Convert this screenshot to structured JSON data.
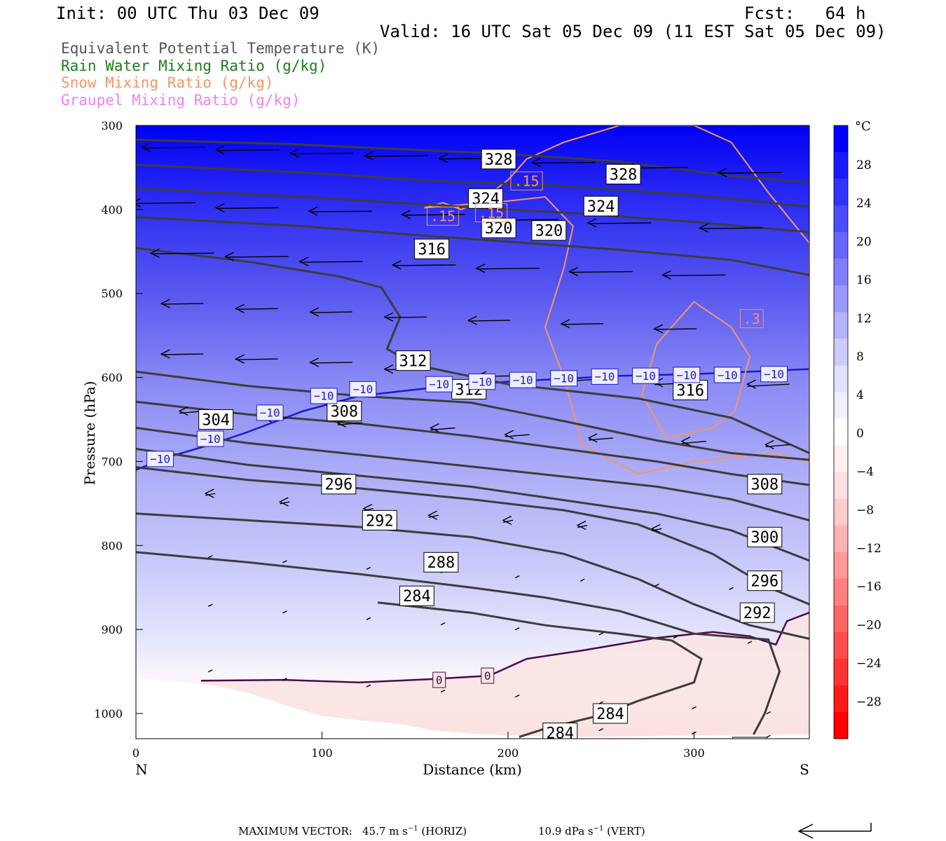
{
  "header": {
    "init": "Init: 00 UTC Thu 03 Dec 09",
    "fcst": "Fcst:   64 h",
    "valid": "Valid: 16 UTC Sat 05 Dec 09 (11 EST Sat 05 Dec 09)"
  },
  "legend": [
    {
      "text": "Equivalent Potential Temperature (K)",
      "color": "#555555"
    },
    {
      "text": "Rain Water Mixing Ratio (g/kg)",
      "color": "#1a7f1a"
    },
    {
      "text": "Snow Mixing Ratio (g/kg)",
      "color": "#f4956a"
    },
    {
      "text": "Graupel Mixing Ratio (g/kg)",
      "color": "#ee82ee"
    }
  ],
  "colorbar": {
    "unit": "°C",
    "labels": [
      "28",
      "24",
      "20",
      "16",
      "12",
      "8",
      "4",
      "0",
      "−4",
      "−8",
      "−12",
      "−16",
      "−20",
      "−24",
      "−28"
    ],
    "colors": [
      "#0000ff",
      "#1a1aff",
      "#3333ff",
      "#4d4dff",
      "#6666ff",
      "#8080ff",
      "#9999ff",
      "#b3b3ff",
      "#ccccff",
      "#e0e0ff",
      "#f0f0ff",
      "#ffffff",
      "#fff0f0",
      "#ffe0e0",
      "#ffcccc",
      "#ffb3b3",
      "#ff9999",
      "#ff8080",
      "#ff6666",
      "#ff4d4d",
      "#ff3333",
      "#ff1a1a",
      "#ff0000"
    ]
  },
  "chart_data": {
    "type": "cross-section",
    "xlabel": "Distance (km)",
    "ylabel": "Pressure (hPa)",
    "x_ticks": [
      "0",
      "100",
      "200",
      "300"
    ],
    "y_ticks": [
      "300",
      "400",
      "500",
      "600",
      "700",
      "800",
      "900",
      "1000"
    ],
    "xlim": [
      0,
      362
    ],
    "ylim": [
      300,
      1030
    ],
    "left_end_label": "N",
    "right_end_label": "S",
    "theta_e": {
      "name": "Equivalent Potential Temperature (K)",
      "lines": [
        {
          "label": "328",
          "points": [
            [
              0,
              317
            ],
            [
              80,
              322
            ],
            [
              140,
              328
            ],
            [
              200,
              334
            ],
            [
              260,
              343
            ],
            [
              320,
              360
            ],
            [
              362,
              368
            ]
          ]
        },
        {
          "label": "324",
          "points": [
            [
              0,
              347
            ],
            [
              90,
              356
            ],
            [
              160,
              366
            ],
            [
              230,
              372
            ],
            [
              300,
              383
            ],
            [
              362,
              397
            ]
          ]
        },
        {
          "label": "320",
          "points": [
            [
              0,
              375
            ],
            [
              90,
              385
            ],
            [
              170,
              396
            ],
            [
              240,
              405
            ],
            [
              300,
              415
            ],
            [
              362,
              427
            ]
          ]
        },
        {
          "label": "316",
          "points": [
            [
              0,
              409
            ],
            [
              90,
              420
            ],
            [
              160,
              432
            ],
            [
              210,
              440
            ],
            [
              260,
              448
            ],
            [
              320,
              460
            ],
            [
              362,
              478
            ]
          ]
        },
        {
          "label": "316",
          "points": [
            [
              0,
              446
            ],
            [
              60,
              462
            ],
            [
              110,
              480
            ],
            [
              132,
              493
            ],
            [
              142,
              528
            ],
            [
              135,
              566
            ],
            [
              150,
              585
            ],
            [
              200,
              608
            ],
            [
              270,
              625
            ],
            [
              320,
              648
            ],
            [
              362,
              690
            ]
          ]
        },
        {
          "label": "312",
          "points": [
            [
              0,
              593
            ],
            [
              60,
              610
            ],
            [
              120,
              622
            ],
            [
              180,
              630
            ],
            [
              230,
              652
            ],
            [
              280,
              675
            ],
            [
              320,
              690
            ],
            [
              362,
              698
            ]
          ]
        },
        {
          "label": "308",
          "points": [
            [
              0,
              629
            ],
            [
              60,
              644
            ],
            [
              120,
              655
            ],
            [
              180,
              670
            ],
            [
              230,
              685
            ],
            [
              280,
              700
            ],
            [
              320,
              715
            ],
            [
              362,
              728
            ]
          ]
        },
        {
          "label": "304",
          "points": [
            [
              0,
              660
            ],
            [
              60,
              678
            ],
            [
              120,
              692
            ],
            [
              180,
              706
            ],
            [
              230,
              718
            ],
            [
              280,
              730
            ],
            [
              320,
              745
            ],
            [
              362,
              770
            ]
          ]
        },
        {
          "label": "300",
          "points": [
            [
              0,
              685
            ],
            [
              60,
              704
            ],
            [
              120,
              717
            ],
            [
              180,
              730
            ],
            [
              230,
              746
            ],
            [
              280,
              762
            ],
            [
              320,
              782
            ],
            [
              362,
              818
            ]
          ]
        },
        {
          "label": "296",
          "points": [
            [
              0,
              707
            ],
            [
              60,
              722
            ],
            [
              120,
              732
            ],
            [
              180,
              745
            ],
            [
              230,
              758
            ],
            [
              270,
              775
            ],
            [
              310,
              810
            ],
            [
              340,
              850
            ],
            [
              362,
              870
            ]
          ]
        },
        {
          "label": "292",
          "points": [
            [
              0,
              762
            ],
            [
              60,
              770
            ],
            [
              120,
              778
            ],
            [
              180,
              790
            ],
            [
              230,
              810
            ],
            [
              270,
              840
            ],
            [
              300,
              870
            ],
            [
              330,
              895
            ],
            [
              362,
              911
            ]
          ]
        },
        {
          "label": "288",
          "points": [
            [
              0,
              808
            ],
            [
              60,
              820
            ],
            [
              120,
              834
            ],
            [
              180,
              850
            ],
            [
              220,
              862
            ],
            [
              260,
              878
            ],
            [
              300,
              905
            ],
            [
              340,
              912
            ],
            [
              346,
              950
            ],
            [
              338,
              1000
            ],
            [
              332,
              1025
            ]
          ]
        },
        {
          "label": "284",
          "points": [
            [
              130,
              868
            ],
            [
              180,
              880
            ],
            [
              220,
              895
            ],
            [
              260,
              905
            ],
            [
              288,
              913
            ],
            [
              304,
              935
            ],
            [
              300,
              963
            ],
            [
              270,
              985
            ],
            [
              250,
              1002
            ],
            [
              220,
              1018
            ],
            [
              206,
              1028
            ]
          ]
        }
      ]
    },
    "temperature_isotherms": [
      {
        "label": "−10",
        "points": [
          [
            0,
            710
          ],
          [
            20,
            693
          ],
          [
            40,
            680
          ],
          [
            60,
            665
          ],
          [
            90,
            640
          ],
          [
            120,
            622
          ],
          [
            160,
            612
          ],
          [
            200,
            605
          ],
          [
            260,
            598
          ],
          [
            300,
            596
          ],
          [
            362,
            590
          ]
        ]
      },
      {
        "label": "0",
        "points": [
          [
            35,
            961
          ],
          [
            80,
            960
          ],
          [
            120,
            963
          ],
          [
            160,
            959
          ],
          [
            190,
            955
          ],
          [
            210,
            935
          ],
          [
            240,
            925
          ],
          [
            280,
            910
          ],
          [
            310,
            903
          ],
          [
            330,
            908
          ],
          [
            344,
            918
          ],
          [
            350,
            890
          ],
          [
            362,
            880
          ]
        ]
      }
    ],
    "snow_mixing_ratio": [
      {
        "label": ".15",
        "points": [
          [
            155,
            398
          ],
          [
            165,
            392
          ],
          [
            175,
            400
          ],
          [
            185,
            390
          ],
          [
            200,
            365
          ],
          [
            210,
            340
          ],
          [
            230,
            320
          ],
          [
            260,
            300
          ],
          [
            300,
            300
          ],
          [
            320,
            320
          ],
          [
            340,
            380
          ],
          [
            362,
            440
          ],
          [
            362,
            700
          ],
          [
            340,
            690
          ],
          [
            300,
            700
          ],
          [
            270,
            715
          ],
          [
            240,
            680
          ],
          [
            230,
            600
          ],
          [
            220,
            540
          ],
          [
            230,
            470
          ],
          [
            235,
            420
          ],
          [
            220,
            385
          ],
          [
            200,
            390
          ]
        ]
      },
      {
        "label": ".3",
        "points": [
          [
            280,
            560
          ],
          [
            300,
            510
          ],
          [
            320,
            540
          ],
          [
            330,
            575
          ],
          [
            322,
            640
          ],
          [
            310,
            660
          ],
          [
            285,
            672
          ],
          [
            272,
            620
          ]
        ]
      }
    ],
    "wind_arrows": [
      {
        "x": 20,
        "p": 326
      },
      {
        "x": 60,
        "p": 329
      },
      {
        "x": 100,
        "p": 333
      },
      {
        "x": 140,
        "p": 336
      },
      {
        "x": 180,
        "p": 339
      },
      {
        "x": 230,
        "p": 344
      },
      {
        "x": 280,
        "p": 350
      },
      {
        "x": 330,
        "p": 356
      },
      {
        "x": 15,
        "p": 392
      },
      {
        "x": 60,
        "p": 398
      },
      {
        "x": 110,
        "p": 402
      },
      {
        "x": 160,
        "p": 406
      },
      {
        "x": 210,
        "p": 412
      },
      {
        "x": 260,
        "p": 416
      },
      {
        "x": 320,
        "p": 422
      },
      {
        "x": 25,
        "p": 452
      },
      {
        "x": 65,
        "p": 456
      },
      {
        "x": 105,
        "p": 462
      },
      {
        "x": 155,
        "p": 466
      },
      {
        "x": 200,
        "p": 470
      },
      {
        "x": 250,
        "p": 474
      },
      {
        "x": 300,
        "p": 478
      },
      {
        "x": 25,
        "p": 512
      },
      {
        "x": 65,
        "p": 518
      },
      {
        "x": 105,
        "p": 522
      },
      {
        "x": 145,
        "p": 528
      },
      {
        "x": 190,
        "p": 532
      },
      {
        "x": 240,
        "p": 536
      },
      {
        "x": 290,
        "p": 542
      },
      {
        "x": 25,
        "p": 572
      },
      {
        "x": 65,
        "p": 578
      },
      {
        "x": 105,
        "p": 582
      },
      {
        "x": 145,
        "p": 590
      },
      {
        "x": 195,
        "p": 598
      },
      {
        "x": 240,
        "p": 602
      },
      {
        "x": 290,
        "p": 606
      },
      {
        "x": 340,
        "p": 608
      },
      {
        "x": 30,
        "p": 640
      },
      {
        "x": 75,
        "p": 648
      },
      {
        "x": 115,
        "p": 654
      },
      {
        "x": 165,
        "p": 660
      },
      {
        "x": 205,
        "p": 668
      },
      {
        "x": 250,
        "p": 672
      },
      {
        "x": 300,
        "p": 676
      },
      {
        "x": 345,
        "p": 680
      },
      {
        "x": 40,
        "p": 738
      },
      {
        "x": 80,
        "p": 748
      },
      {
        "x": 125,
        "p": 756
      },
      {
        "x": 160,
        "p": 764
      },
      {
        "x": 200,
        "p": 770
      },
      {
        "x": 240,
        "p": 776
      },
      {
        "x": 280,
        "p": 780
      },
      {
        "x": 40,
        "p": 812
      },
      {
        "x": 80,
        "p": 818
      },
      {
        "x": 125,
        "p": 826
      },
      {
        "x": 165,
        "p": 830
      },
      {
        "x": 205,
        "p": 836
      },
      {
        "x": 240,
        "p": 840
      },
      {
        "x": 280,
        "p": 846
      },
      {
        "x": 320,
        "p": 850
      },
      {
        "x": 40,
        "p": 870
      },
      {
        "x": 80,
        "p": 878
      },
      {
        "x": 125,
        "p": 886
      },
      {
        "x": 165,
        "p": 892
      },
      {
        "x": 205,
        "p": 898
      },
      {
        "x": 250,
        "p": 904
      },
      {
        "x": 290,
        "p": 908
      },
      {
        "x": 330,
        "p": 914
      },
      {
        "x": 40,
        "p": 948
      },
      {
        "x": 80,
        "p": 958
      },
      {
        "x": 125,
        "p": 966
      },
      {
        "x": 165,
        "p": 972
      },
      {
        "x": 205,
        "p": 978
      },
      {
        "x": 250,
        "p": 986
      },
      {
        "x": 300,
        "p": 992
      },
      {
        "x": 340,
        "p": 998
      },
      {
        "x": 250,
        "p": 1018
      },
      {
        "x": 300,
        "p": 1022
      },
      {
        "x": 340,
        "p": 1026
      }
    ]
  },
  "footer": {
    "max_vector_label": "MAXIMUM VECTOR:",
    "horiz_value": "45.7 m s",
    "horiz_unit": "(HORIZ)",
    "vert_value": "10.9 dPa s",
    "vert_unit": "(VERT)",
    "exponent": "−1"
  }
}
